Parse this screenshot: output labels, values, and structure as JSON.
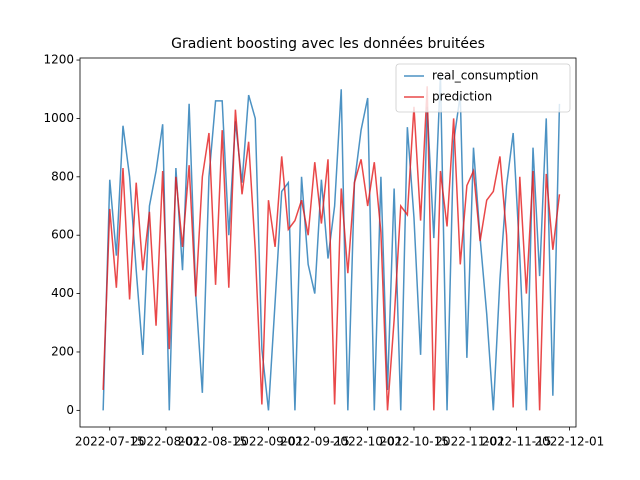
{
  "chart_data": {
    "type": "line",
    "title": "Gradient boosting avec les données bruitées",
    "x": [
      "2022-07-13",
      "2022-07-15",
      "2022-07-17",
      "2022-07-19",
      "2022-07-21",
      "2022-07-23",
      "2022-07-25",
      "2022-07-27",
      "2022-07-29",
      "2022-07-31",
      "2022-08-02",
      "2022-08-04",
      "2022-08-06",
      "2022-08-08",
      "2022-08-10",
      "2022-08-12",
      "2022-08-14",
      "2022-08-16",
      "2022-08-18",
      "2022-08-20",
      "2022-08-22",
      "2022-08-24",
      "2022-08-26",
      "2022-08-28",
      "2022-08-30",
      "2022-09-01",
      "2022-09-03",
      "2022-09-05",
      "2022-09-07",
      "2022-09-09",
      "2022-09-11",
      "2022-09-13",
      "2022-09-15",
      "2022-09-17",
      "2022-09-19",
      "2022-09-21",
      "2022-09-23",
      "2022-09-25",
      "2022-09-27",
      "2022-09-29",
      "2022-10-01",
      "2022-10-03",
      "2022-10-05",
      "2022-10-07",
      "2022-10-09",
      "2022-10-11",
      "2022-10-13",
      "2022-10-15",
      "2022-10-17",
      "2022-10-19",
      "2022-10-21",
      "2022-10-23",
      "2022-10-25",
      "2022-10-27",
      "2022-10-29",
      "2022-10-31",
      "2022-11-02",
      "2022-11-04",
      "2022-11-06",
      "2022-11-08",
      "2022-11-10",
      "2022-11-12",
      "2022-11-14",
      "2022-11-16",
      "2022-11-18",
      "2022-11-20",
      "2022-11-22",
      "2022-11-24",
      "2022-11-26",
      "2022-11-28"
    ],
    "series": [
      {
        "name": "real_consumption",
        "color": "#1f77b4",
        "values": [
          0,
          790,
          530,
          975,
          800,
          480,
          190,
          700,
          820,
          980,
          0,
          830,
          480,
          1050,
          400,
          60,
          800,
          1060,
          1060,
          600,
          990,
          780,
          1080,
          1000,
          210,
          0,
          370,
          750,
          780,
          0,
          800,
          500,
          400,
          790,
          520,
          700,
          1100,
          0,
          780,
          960,
          1070,
          0,
          800,
          70,
          760,
          0,
          970,
          660,
          190,
          1040,
          590,
          1150,
          0,
          920,
          1080,
          180,
          900,
          590,
          330,
          0,
          450,
          770,
          950,
          530,
          0,
          900,
          460,
          1000,
          50,
          1050
        ]
      },
      {
        "name": "prediction",
        "color": "#e31a1c",
        "values": [
          70,
          690,
          420,
          830,
          380,
          780,
          480,
          680,
          290,
          820,
          210,
          800,
          560,
          840,
          390,
          800,
          950,
          430,
          960,
          420,
          1030,
          740,
          920,
          550,
          20,
          720,
          560,
          870,
          620,
          650,
          720,
          600,
          850,
          640,
          860,
          20,
          760,
          470,
          780,
          860,
          700,
          850,
          610,
          0,
          310,
          700,
          670,
          1040,
          650,
          1110,
          0,
          820,
          630,
          1000,
          500,
          770,
          820,
          580,
          720,
          750,
          870,
          600,
          10,
          800,
          400,
          820,
          0,
          810,
          550,
          740
        ]
      }
    ],
    "xlim": [
      "2022-07-06",
      "2022-12-03"
    ],
    "xticks": [
      "2022-07-15",
      "2022-08-01",
      "2022-08-15",
      "2022-09-01",
      "2022-09-15",
      "2022-10-01",
      "2022-10-15",
      "2022-11-01",
      "2022-11-15",
      "2022-12-01"
    ],
    "ylim": [
      -57,
      1207
    ],
    "yticks": [
      0,
      200,
      400,
      600,
      800,
      1000,
      1200
    ],
    "legend": "upper right"
  }
}
